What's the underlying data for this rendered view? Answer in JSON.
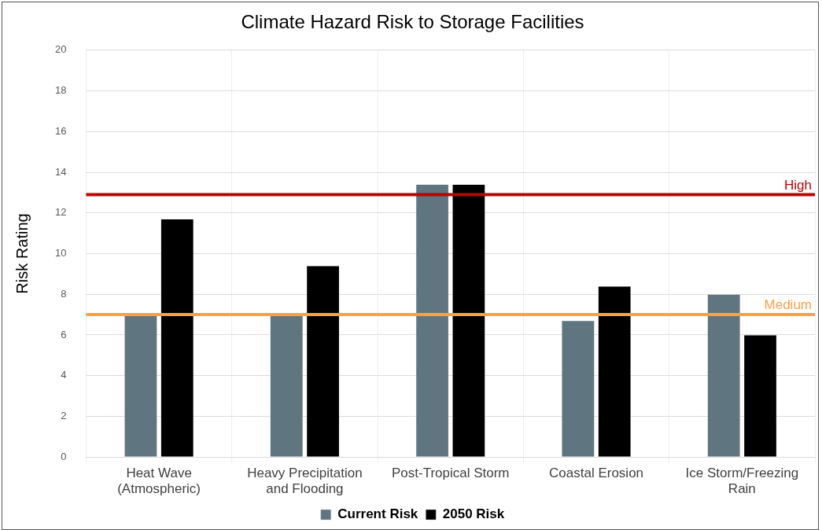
{
  "chart_data": {
    "type": "bar",
    "title": "Climate Hazard Risk to Storage Facilities",
    "ylabel": "Risk Rating",
    "categories": [
      [
        "Heat Wave",
        "(Atmospheric)"
      ],
      [
        "Heavy Precipitation",
        "and Flooding"
      ],
      [
        "Post-Tropical Storm"
      ],
      [
        "Coastal Erosion"
      ],
      [
        "Ice Storm/Freezing",
        "Rain"
      ]
    ],
    "series": [
      {
        "name": "Current Risk",
        "color": "#5f7680",
        "values": [
          7.0,
          7.0,
          13.4,
          6.7,
          8.0
        ]
      },
      {
        "name": "2050 Risk",
        "color": "#000000",
        "values": [
          11.7,
          9.4,
          13.4,
          8.4,
          6.0
        ]
      }
    ],
    "ylim": [
      0,
      20
    ],
    "yticks": [
      0,
      2,
      4,
      6,
      8,
      10,
      12,
      14,
      16,
      18,
      20
    ],
    "grid": true,
    "legend": "bottom",
    "ref_lines": [
      {
        "axis": "y",
        "value": 12.9,
        "label": "High",
        "color": "#c00000"
      },
      {
        "axis": "y",
        "value": 7,
        "label": "Medium",
        "color": "#ffa040"
      }
    ]
  }
}
